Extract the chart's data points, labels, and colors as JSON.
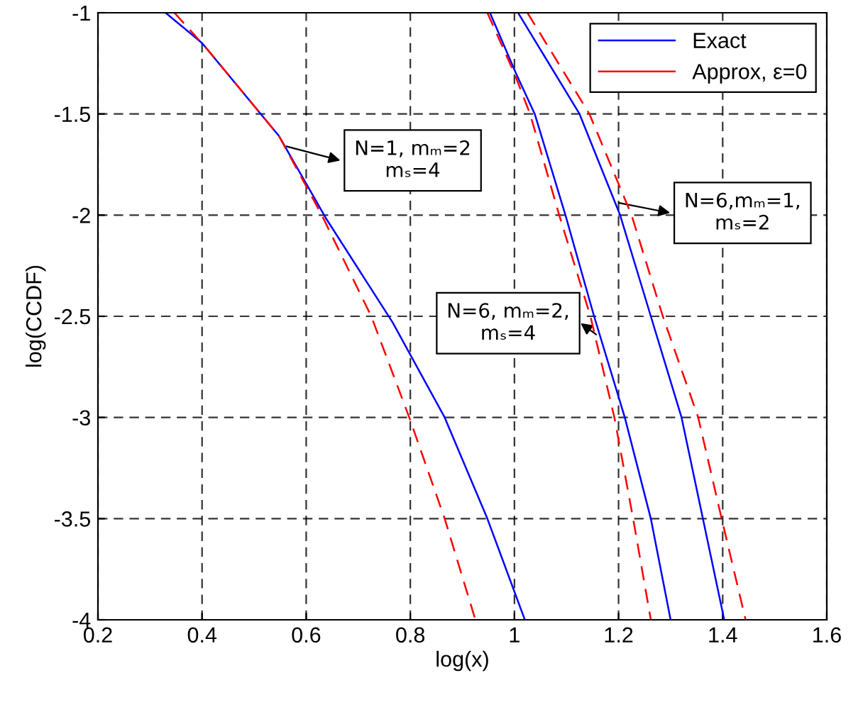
{
  "chart_data": {
    "type": "line",
    "xlabel": "log(x)",
    "ylabel": "log(CCDF)",
    "xlim": [
      0.2,
      1.6
    ],
    "ylim": [
      -4,
      -1
    ],
    "xticks": [
      0.2,
      0.4,
      0.6,
      0.8,
      1,
      1.2,
      1.4,
      1.6
    ],
    "yticks": [
      -4,
      -3.5,
      -3,
      -2.5,
      -2,
      -1.5,
      -1
    ],
    "grid": true,
    "legend": "top right",
    "series": [
      {
        "name": "Exact",
        "color": "#0000ff",
        "line_style": "solid",
        "x": [
          0.33,
          0.4,
          0.548,
          0.639,
          0.766,
          0.866,
          0.948,
          1.02
        ],
        "values": [
          -1,
          -1.15,
          -1.61,
          -2.02,
          -2.53,
          -3,
          -3.5,
          -4
        ]
      },
      {
        "name": "Approx, ε=0",
        "color": "#ff0000",
        "line_style": "dashed",
        "x": [
          0.347,
          0.41,
          0.548,
          0.63,
          0.725,
          0.798,
          0.866,
          0.925
        ],
        "values": [
          -1,
          -1.18,
          -1.61,
          -2,
          -2.5,
          -3,
          -3.5,
          -4
        ]
      },
      {
        "color": "#0000ff",
        "line_style": "solid",
        "x": [
          0.953,
          1.003,
          1.039,
          1.098,
          1.153,
          1.212,
          1.262,
          1.3
        ],
        "values": [
          -1,
          -1.3,
          -1.5,
          -2,
          -2.5,
          -3,
          -3.5,
          -4
        ]
      },
      {
        "color": "#ff0000",
        "line_style": "dashed",
        "x": [
          0.948,
          1.0,
          1.03,
          1.086,
          1.146,
          1.192,
          1.228,
          1.262
        ],
        "values": [
          -1,
          -1.3,
          -1.5,
          -2,
          -2.5,
          -3,
          -3.5,
          -4
        ]
      },
      {
        "color": "#0000ff",
        "line_style": "solid",
        "x": [
          1.007,
          1.125,
          1.203,
          1.262,
          1.321,
          1.362,
          1.403
        ],
        "values": [
          -1,
          -1.5,
          -2,
          -2.5,
          -3,
          -3.5,
          -4
        ]
      },
      {
        "color": "#ff0000",
        "line_style": "dashed",
        "x": [
          1.025,
          1.144,
          1.225,
          1.285,
          1.353,
          1.398,
          1.444
        ],
        "values": [
          -1,
          -1.5,
          -2,
          -2.5,
          -3,
          -3.5,
          -4
        ]
      }
    ],
    "annotations": [
      {
        "text": "N=1, mₘ=2\nmₛ=4",
        "x": 0.562,
        "y": -1.66
      },
      {
        "text": "N=6, mₘ=2,\nmₛ=4",
        "x": 1.157,
        "y": -2.59
      },
      {
        "text": "N=6,mₘ=1,\nmₛ=2",
        "x": 1.201,
        "y": -1.94
      }
    ]
  }
}
